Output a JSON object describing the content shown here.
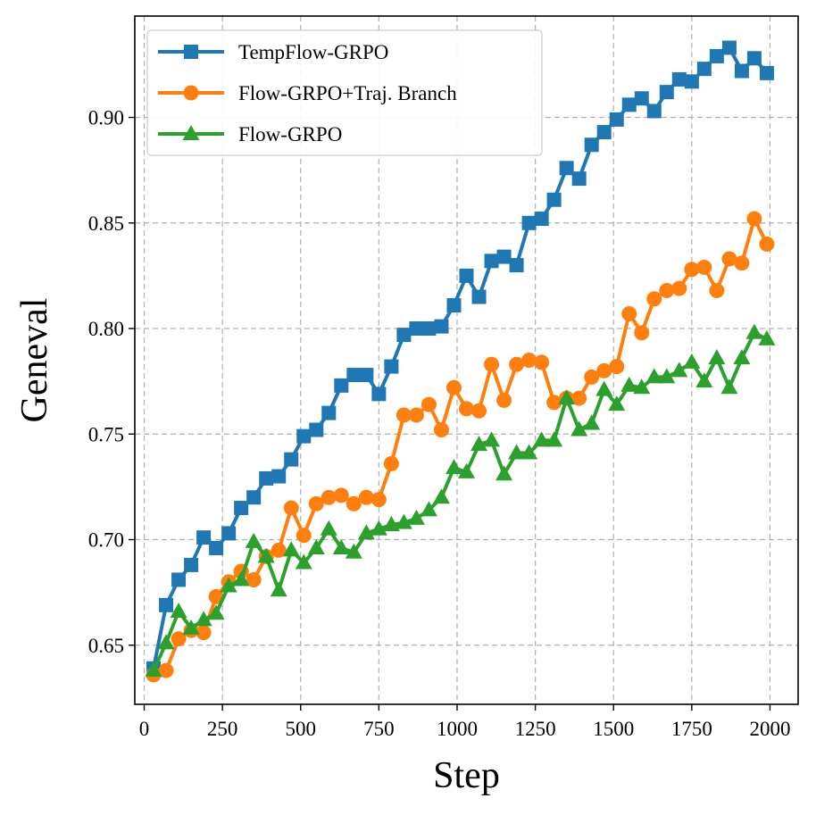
{
  "chart_data": {
    "type": "line",
    "xlabel": "Step",
    "ylabel": "Geneval",
    "xlim": [
      -30,
      2090
    ],
    "ylim": [
      0.622,
      0.948
    ],
    "xticks": [
      0,
      250,
      500,
      750,
      1000,
      1250,
      1500,
      1750,
      2000
    ],
    "yticks": [
      0.65,
      0.7,
      0.75,
      0.8,
      0.85,
      0.9
    ],
    "grid": true,
    "legend_position": "top-left",
    "x": [
      30,
      70,
      110,
      150,
      190,
      230,
      270,
      310,
      350,
      390,
      430,
      470,
      510,
      550,
      590,
      630,
      670,
      710,
      750,
      790,
      830,
      870,
      910,
      950,
      990,
      1030,
      1070,
      1110,
      1150,
      1190,
      1230,
      1270,
      1310,
      1350,
      1390,
      1430,
      1470,
      1510,
      1550,
      1590,
      1630,
      1670,
      1710,
      1750,
      1790,
      1830,
      1870,
      1910,
      1950,
      1990
    ],
    "series": [
      {
        "name": "TempFlow-GRPO",
        "color": "#1f77b4",
        "marker": "square",
        "values": [
          0.639,
          0.669,
          0.681,
          0.688,
          0.701,
          0.696,
          0.703,
          0.715,
          0.72,
          0.729,
          0.73,
          0.738,
          0.749,
          0.752,
          0.76,
          0.773,
          0.778,
          0.778,
          0.769,
          0.782,
          0.797,
          0.8,
          0.8,
          0.801,
          0.811,
          0.825,
          0.815,
          0.832,
          0.834,
          0.83,
          0.85,
          0.852,
          0.861,
          0.876,
          0.871,
          0.887,
          0.893,
          0.899,
          0.906,
          0.909,
          0.903,
          0.912,
          0.918,
          0.917,
          0.923,
          0.929,
          0.933,
          0.922,
          0.928,
          0.921
        ]
      },
      {
        "name": "Flow-GRPO+Traj. Branch",
        "color": "#ff7f0e",
        "marker": "circle",
        "values": [
          0.636,
          0.638,
          0.653,
          0.657,
          0.656,
          0.673,
          0.68,
          0.685,
          0.681,
          0.692,
          0.695,
          0.715,
          0.702,
          0.717,
          0.72,
          0.721,
          0.717,
          0.72,
          0.719,
          0.736,
          0.759,
          0.759,
          0.764,
          0.752,
          0.772,
          0.762,
          0.761,
          0.783,
          0.766,
          0.783,
          0.785,
          0.784,
          0.765,
          0.767,
          0.767,
          0.777,
          0.78,
          0.782,
          0.807,
          0.798,
          0.814,
          0.818,
          0.819,
          0.828,
          0.829,
          0.818,
          0.833,
          0.831,
          0.852,
          0.84
        ]
      },
      {
        "name": "Flow-GRPO",
        "color": "#2ca02c",
        "marker": "triangle",
        "values": [
          0.638,
          0.651,
          0.666,
          0.658,
          0.662,
          0.665,
          0.678,
          0.681,
          0.699,
          0.692,
          0.676,
          0.695,
          0.689,
          0.696,
          0.705,
          0.696,
          0.694,
          0.703,
          0.705,
          0.707,
          0.708,
          0.71,
          0.714,
          0.72,
          0.734,
          0.732,
          0.745,
          0.747,
          0.731,
          0.741,
          0.741,
          0.747,
          0.747,
          0.767,
          0.752,
          0.755,
          0.771,
          0.764,
          0.773,
          0.772,
          0.777,
          0.777,
          0.78,
          0.784,
          0.775,
          0.786,
          0.772,
          0.786,
          0.798,
          0.795
        ]
      }
    ]
  }
}
